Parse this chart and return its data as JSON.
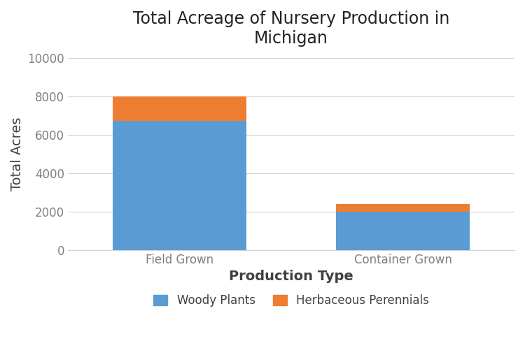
{
  "categories": [
    "Field Grown",
    "Container Grown"
  ],
  "woody_plants": [
    6700,
    2000
  ],
  "herbaceous_perennials": [
    1300,
    400
  ],
  "woody_color": "#5B9BD5",
  "herb_color": "#ED7D31",
  "title": "Total Acreage of Nursery Production in\nMichigan",
  "xlabel": "Production Type",
  "ylabel": "Total Acres",
  "ylim": [
    0,
    10000
  ],
  "yticks": [
    0,
    2000,
    4000,
    6000,
    8000,
    10000
  ],
  "legend_woody": "Woody Plants",
  "legend_herb": "Herbaceous Perennials",
  "title_fontsize": 17,
  "label_fontsize": 14,
  "tick_fontsize": 12,
  "legend_fontsize": 12,
  "background_color": "#FFFFFF",
  "grid_color": "#D3D3D3",
  "tick_color": "#808080",
  "bar_width": 0.6,
  "bar_positions": [
    0.25,
    0.75
  ]
}
